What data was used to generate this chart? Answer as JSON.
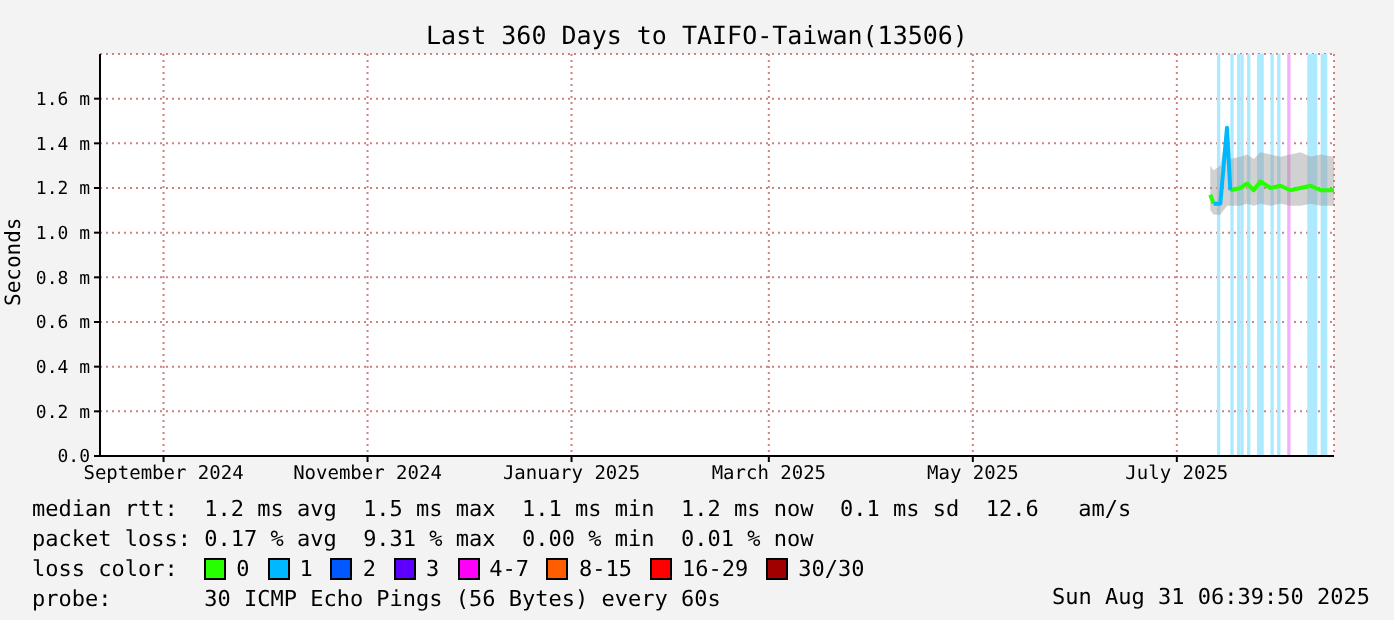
{
  "chart_data": {
    "type": "line",
    "title": "Last 360 Days to TAIFO-Taiwan(13506)",
    "ylabel": "Seconds",
    "x": [
      "2025-07-25",
      "2025-07-26",
      "2025-07-28",
      "2025-07-30",
      "2025-07-31",
      "2025-08-03",
      "2025-08-05",
      "2025-08-07",
      "2025-08-09",
      "2025-08-12",
      "2025-08-15",
      "2025-08-18",
      "2025-08-21",
      "2025-08-24",
      "2025-08-27",
      "2025-08-31"
    ],
    "xlim": [
      "2024-08-27",
      "2025-08-31"
    ],
    "xticks": [
      {
        "value": "2024-09-15",
        "label": "September 2024"
      },
      {
        "value": "2024-11-15",
        "label": "November 2024"
      },
      {
        "value": "2025-01-15",
        "label": "January 2025"
      },
      {
        "value": "2025-03-15",
        "label": "March 2025"
      },
      {
        "value": "2025-05-15",
        "label": "May 2025"
      },
      {
        "value": "2025-07-15",
        "label": "July 2025"
      }
    ],
    "ylim": [
      0,
      1.8
    ],
    "yticks": [
      {
        "value": 0,
        "label": "0.0"
      },
      {
        "value": 0.2,
        "label": "0.2 m"
      },
      {
        "value": 0.4,
        "label": "0.4 m"
      },
      {
        "value": 0.6,
        "label": "0.6 m"
      },
      {
        "value": 0.8,
        "label": "0.8 m"
      },
      {
        "value": 1.0,
        "label": "1.0 m"
      },
      {
        "value": 1.2,
        "label": "1.2 m"
      },
      {
        "value": 1.4,
        "label": "1.4 m"
      },
      {
        "value": 1.6,
        "label": "1.6 m"
      }
    ],
    "grid": true,
    "marker": "none",
    "line_style": "solid",
    "legend": "bottom",
    "legend_title": "loss color:",
    "series": [
      {
        "name": "0",
        "color": "#26ff00",
        "values": [
          1.17,
          1.13,
          null,
          null,
          1.19,
          1.2,
          1.22,
          1.19,
          1.23,
          1.2,
          1.21,
          1.19,
          1.2,
          1.21,
          1.19,
          1.19
        ],
        "lower": [
          1.1,
          1.08,
          1.08,
          1.12,
          1.12,
          1.12,
          1.13,
          1.12,
          1.13,
          1.12,
          1.13,
          1.12,
          1.12,
          1.13,
          1.12,
          1.12
        ],
        "upper": [
          1.3,
          1.28,
          1.3,
          1.47,
          1.33,
          1.34,
          1.35,
          1.33,
          1.36,
          1.35,
          1.34,
          1.35,
          1.36,
          1.34,
          1.35,
          1.34
        ]
      },
      {
        "name": "1",
        "color": "#00b8ff",
        "values": [
          null,
          1.13,
          1.13,
          1.47,
          1.19,
          null,
          null,
          null,
          null,
          null,
          null,
          null,
          null,
          null,
          null,
          null
        ]
      },
      {
        "name": "2",
        "color": "#0059ff",
        "values": [
          null,
          null,
          null,
          null,
          null,
          null,
          null,
          null,
          null,
          null,
          null,
          null,
          null,
          null,
          null,
          null
        ]
      },
      {
        "name": "3",
        "color": "#5e00ff",
        "values": [
          null,
          null,
          null,
          null,
          null,
          null,
          null,
          null,
          null,
          null,
          null,
          null,
          null,
          null,
          null,
          null
        ]
      },
      {
        "name": "4-7",
        "color": "#ff00f8",
        "values": [
          null,
          null,
          null,
          null,
          null,
          null,
          null,
          null,
          null,
          null,
          null,
          null,
          null,
          null,
          null,
          null
        ]
      },
      {
        "name": "8-15",
        "color": "#ff5e00",
        "values": [
          null,
          null,
          null,
          null,
          null,
          null,
          null,
          null,
          null,
          null,
          null,
          null,
          null,
          null,
          null,
          null
        ]
      },
      {
        "name": "16-29",
        "color": "#ff0000",
        "values": [
          null,
          null,
          null,
          null,
          null,
          null,
          null,
          null,
          null,
          null,
          null,
          null,
          null,
          null,
          null,
          null
        ]
      },
      {
        "name": "30/30",
        "color": "#a10000",
        "values": [
          null,
          null,
          null,
          null,
          null,
          null,
          null,
          null,
          null,
          null,
          null,
          null,
          null,
          null,
          null,
          null
        ]
      }
    ],
    "bands": [
      {
        "axis": "x",
        "from": "2025-07-27",
        "to": "2025-07-28",
        "color": "#aeeaff"
      },
      {
        "axis": "x",
        "from": "2025-07-31",
        "to": "2025-08-01",
        "color": "#aeeaff"
      },
      {
        "axis": "x",
        "from": "2025-08-02",
        "to": "2025-08-03",
        "color": "#aeeaff"
      },
      {
        "axis": "x",
        "from": "2025-08-03",
        "to": "2025-08-04",
        "color": "#aeeaff"
      },
      {
        "axis": "x",
        "from": "2025-08-05",
        "to": "2025-08-06",
        "color": "#aeeaff"
      },
      {
        "axis": "x",
        "from": "2025-08-08",
        "to": "2025-08-10",
        "color": "#aeeaff"
      },
      {
        "axis": "x",
        "from": "2025-08-12",
        "to": "2025-08-13",
        "color": "#aeeaff"
      },
      {
        "axis": "x",
        "from": "2025-08-14",
        "to": "2025-08-15",
        "color": "#aeeaff"
      },
      {
        "axis": "x",
        "from": "2025-08-17",
        "to": "2025-08-18",
        "color": "#f4b0ff"
      },
      {
        "axis": "x",
        "from": "2025-08-23",
        "to": "2025-08-26",
        "color": "#aeeaff"
      },
      {
        "axis": "x",
        "from": "2025-08-27",
        "to": "2025-08-29",
        "color": "#aeeaff"
      }
    ],
    "annotations": [
      "median rtt:  1.2 ms avg  1.5 ms max  1.1 ms min  1.2 ms now  0.1 ms sd  12.6   am/s",
      "packet loss: 0.17 % avg  9.31 % max  0.00 % min  0.01 % now",
      "probe:       30 ICMP Echo Pings (56 Bytes) every 60s",
      "Sun Aug 31 06:39:50 2025"
    ]
  }
}
